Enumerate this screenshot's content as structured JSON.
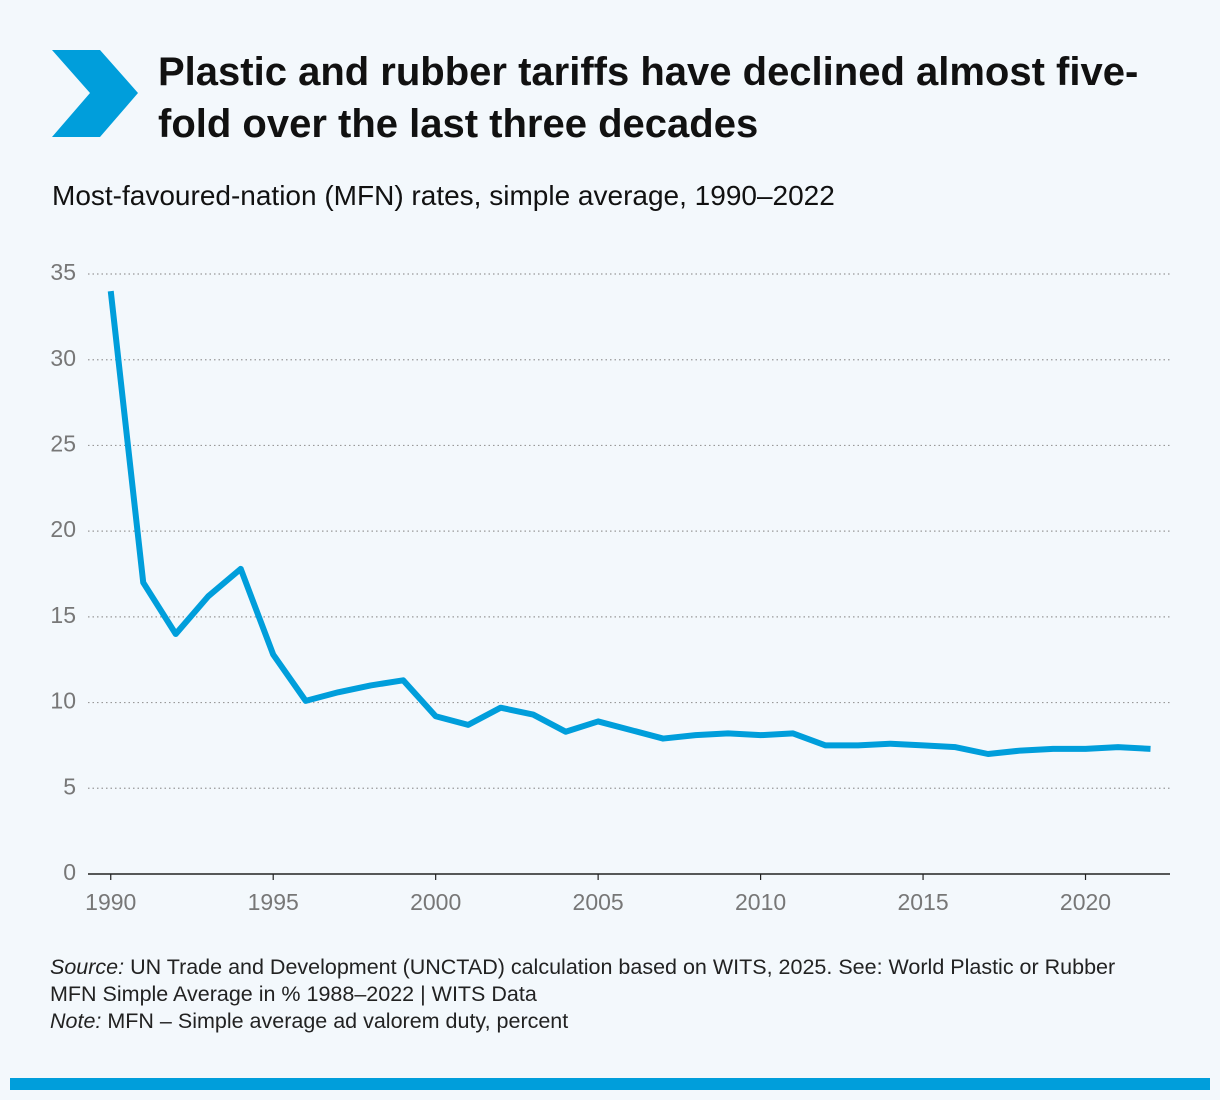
{
  "chart_data": {
    "type": "line",
    "title": "Plastic and rubber tariffs have declined almost five-fold over the last three decades",
    "subtitle": "Most-favoured-nation (MFN) rates, simple average, 1990–2022",
    "source_label": "Source:",
    "source_text": "UN Trade and Development (UNCTAD) calculation based on WITS, 2025. See: World Plastic or Rubber MFN Simple Average in % 1988–2022 | WITS Data",
    "note_label": "Note:",
    "note_text": "MFN – Simple average ad valorem duty, percent",
    "x": [
      1990,
      1991,
      1992,
      1993,
      1994,
      1995,
      1996,
      1997,
      1998,
      1999,
      2000,
      2001,
      2002,
      2003,
      2004,
      2005,
      2006,
      2007,
      2008,
      2009,
      2010,
      2011,
      2012,
      2013,
      2014,
      2015,
      2016,
      2017,
      2018,
      2019,
      2020,
      2021,
      2022
    ],
    "series": [
      {
        "name": "MFN simple average",
        "color": "#009edb",
        "values": [
          34.0,
          17.0,
          14.0,
          16.2,
          17.8,
          12.8,
          10.1,
          10.6,
          11.0,
          11.3,
          9.2,
          8.7,
          9.7,
          9.3,
          8.3,
          8.9,
          8.4,
          7.9,
          8.1,
          8.2,
          8.1,
          8.2,
          7.5,
          7.5,
          7.6,
          7.5,
          7.4,
          7.0,
          7.2,
          7.3,
          7.3,
          7.4,
          7.3
        ]
      }
    ],
    "xlim": [
      1989.3,
      2022.6
    ],
    "xticks": [
      1990,
      1995,
      2000,
      2005,
      2010,
      2015,
      2020
    ],
    "ylim": [
      0,
      35
    ],
    "yticks": [
      0,
      5,
      10,
      15,
      20,
      25,
      30,
      35
    ],
    "grid": true
  }
}
